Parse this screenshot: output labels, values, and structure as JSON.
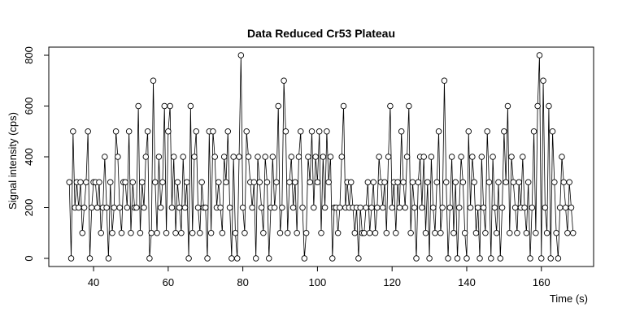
{
  "chart_data": {
    "type": "line-points",
    "title": "Data Reduced Cr53 Plateau",
    "xlabel": "Time (s)",
    "ylabel": "Signal intensity (cps)",
    "x": [
      33.5,
      34,
      34.5,
      35,
      35.5,
      36,
      36.5,
      37,
      37.5,
      38,
      38.5,
      39,
      39.5,
      40,
      40.5,
      41,
      41.5,
      42,
      42.5,
      43,
      43.5,
      44,
      44.5,
      45,
      45.5,
      46,
      46.5,
      47,
      47.5,
      48,
      48.5,
      49,
      49.5,
      50,
      50.5,
      51,
      51.5,
      52,
      52.5,
      53,
      53.5,
      54,
      54.5,
      55,
      55.5,
      56,
      56.5,
      57,
      57.5,
      58,
      58.5,
      59,
      59.5,
      60,
      60.5,
      61,
      61.5,
      62,
      62.5,
      63,
      63.5,
      64,
      64.5,
      65,
      65.5,
      66,
      66.5,
      67,
      67.5,
      68,
      68.5,
      69,
      69.5,
      70,
      70.5,
      71,
      71.5,
      72,
      72.5,
      73,
      73.5,
      74,
      74.5,
      75,
      75.5,
      76,
      76.5,
      77,
      77.5,
      78,
      78.5,
      79,
      79.5,
      80,
      80.5,
      81,
      81.5,
      82,
      82.5,
      83,
      83.5,
      84,
      84.5,
      85,
      85.5,
      86,
      86.5,
      87,
      87.5,
      88,
      88.5,
      89,
      89.5,
      90,
      90.5,
      91,
      91.5,
      92,
      92.5,
      93,
      93.5,
      94,
      94.5,
      95,
      95.5,
      96,
      96.5,
      97,
      97.5,
      98,
      98.5,
      99,
      99.5,
      100,
      100.5,
      101,
      101.5,
      102,
      102.5,
      103,
      103.5,
      104,
      104.5,
      105,
      105.5,
      106,
      106.5,
      107,
      107.5,
      108,
      108.5,
      109,
      109.5,
      110,
      110.5,
      111,
      111.5,
      112,
      112.5,
      113,
      113.5,
      114,
      114.5,
      115,
      115.5,
      116,
      116.5,
      117,
      117.5,
      118,
      118.5,
      119,
      119.5,
      120,
      120.5,
      121,
      121.5,
      122,
      122.5,
      123,
      123.5,
      124,
      124.5,
      125,
      125.5,
      126,
      126.5,
      127,
      127.5,
      128,
      128.5,
      129,
      129.5,
      130,
      130.5,
      131,
      131.5,
      132,
      132.5,
      133,
      133.5,
      134,
      134.5,
      135,
      135.5,
      136,
      136.5,
      137,
      137.5,
      138,
      138.5,
      139,
      139.5,
      140,
      140.5,
      141,
      141.5,
      142,
      142.5,
      143,
      143.5,
      144,
      144.5,
      145,
      145.5,
      146,
      146.5,
      147,
      147.5,
      148,
      148.5,
      149,
      149.5,
      150,
      150.5,
      151,
      151.5,
      152,
      152.5,
      153,
      153.5,
      154,
      154.5,
      155,
      155.5,
      156,
      156.5,
      157,
      157.5,
      158,
      158.5,
      159,
      159.5,
      160,
      160.5,
      161,
      161.5,
      162,
      162.5,
      163,
      163.5,
      164,
      164.5,
      165,
      165.5,
      166,
      166.5,
      167,
      167.5,
      168,
      168.5
    ],
    "values": [
      300,
      0,
      500,
      200,
      300,
      200,
      300,
      100,
      200,
      300,
      500,
      0,
      200,
      300,
      300,
      200,
      300,
      100,
      200,
      400,
      200,
      0,
      300,
      100,
      200,
      500,
      400,
      200,
      100,
      300,
      300,
      200,
      500,
      100,
      300,
      200,
      200,
      600,
      100,
      300,
      200,
      400,
      500,
      0,
      100,
      700,
      300,
      100,
      400,
      200,
      300,
      600,
      100,
      500,
      600,
      200,
      400,
      100,
      300,
      200,
      100,
      400,
      200,
      300,
      0,
      600,
      100,
      400,
      500,
      200,
      100,
      300,
      200,
      200,
      0,
      500,
      100,
      500,
      400,
      200,
      300,
      200,
      100,
      400,
      300,
      500,
      200,
      0,
      400,
      100,
      0,
      400,
      800,
      200,
      100,
      500,
      400,
      300,
      200,
      300,
      0,
      400,
      300,
      200,
      100,
      400,
      300,
      0,
      200,
      400,
      200,
      300,
      600,
      100,
      200,
      700,
      500,
      100,
      300,
      400,
      200,
      300,
      100,
      400,
      500,
      200,
      0,
      100,
      400,
      300,
      500,
      200,
      400,
      300,
      500,
      100,
      400,
      200,
      500,
      300,
      400,
      0,
      200,
      200,
      100,
      200,
      400,
      600,
      200,
      300,
      200,
      300,
      200,
      100,
      200,
      0,
      200,
      100,
      100,
      200,
      300,
      100,
      200,
      300,
      100,
      200,
      400,
      300,
      200,
      300,
      100,
      400,
      600,
      200,
      300,
      100,
      300,
      200,
      500,
      300,
      200,
      400,
      600,
      100,
      300,
      200,
      0,
      300,
      400,
      200,
      400,
      100,
      300,
      0,
      400,
      200,
      100,
      300,
      500,
      100,
      200,
      700,
      300,
      0,
      200,
      400,
      100,
      300,
      0,
      200,
      400,
      300,
      100,
      0,
      500,
      200,
      400,
      300,
      100,
      200,
      0,
      400,
      200,
      100,
      500,
      300,
      0,
      400,
      200,
      100,
      300,
      0,
      200,
      500,
      300,
      600,
      100,
      400,
      300,
      200,
      100,
      300,
      200,
      400,
      200,
      100,
      300,
      0,
      200,
      500,
      100,
      600,
      800,
      0,
      700,
      200,
      100,
      600,
      0,
      500,
      300,
      100,
      0,
      200,
      400,
      300,
      200,
      100,
      300,
      200,
      100
    ],
    "xlim": [
      28,
      174
    ],
    "ylim": [
      -32,
      832
    ],
    "xticks": [
      40,
      60,
      80,
      100,
      120,
      140,
      160
    ],
    "yticks": [
      0,
      200,
      400,
      600,
      800
    ],
    "color": "#000000"
  }
}
